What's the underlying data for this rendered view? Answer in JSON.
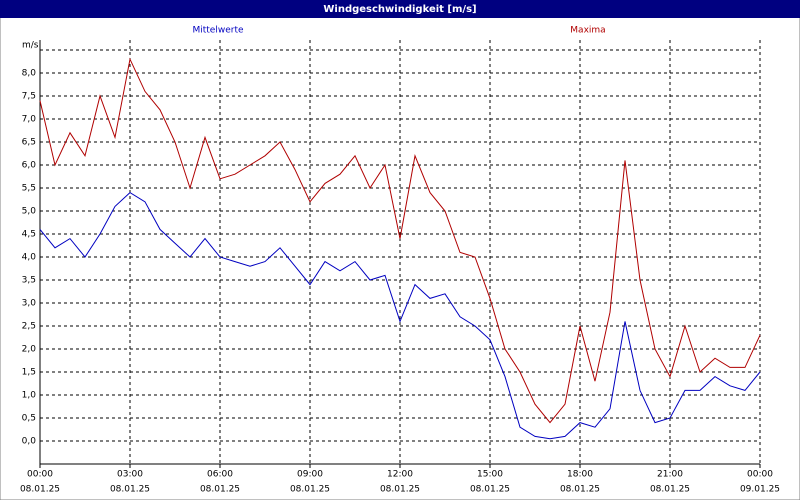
{
  "chart_data": {
    "type": "line",
    "title": "Windgeschwindigkeit [m/s]",
    "y_label": "m/s",
    "x": [
      0,
      0.5,
      1,
      1.5,
      2,
      2.5,
      3,
      3.5,
      4,
      4.5,
      5,
      5.5,
      6,
      6.5,
      7,
      7.5,
      8,
      8.5,
      9,
      9.5,
      10,
      10.5,
      11,
      11.5,
      12,
      12.5,
      13,
      13.5,
      14,
      14.5,
      15,
      15.5,
      16,
      16.5,
      17,
      17.5,
      18,
      18.5,
      19,
      19.5,
      20,
      20.5,
      21,
      21.5,
      22,
      22.5,
      23,
      23.5,
      24
    ],
    "series": [
      {
        "name": "Mittelwerte",
        "color": "#0000c0",
        "values": [
          4.6,
          4.2,
          4.4,
          4.0,
          4.5,
          5.1,
          5.4,
          5.2,
          4.6,
          4.3,
          4.0,
          4.4,
          4.0,
          3.9,
          3.8,
          3.9,
          4.2,
          3.8,
          3.4,
          3.9,
          3.7,
          3.9,
          3.5,
          3.6,
          2.6,
          3.4,
          3.1,
          3.2,
          2.7,
          2.5,
          2.2,
          1.4,
          0.3,
          0.1,
          0.05,
          0.1,
          0.4,
          0.3,
          0.7,
          2.6,
          1.1,
          0.4,
          0.5,
          1.1,
          1.1,
          1.4,
          1.2,
          1.1,
          1.5
        ]
      },
      {
        "name": "Maxima",
        "color": "#b00000",
        "values": [
          7.4,
          6.0,
          6.7,
          6.2,
          7.5,
          6.6,
          8.3,
          7.6,
          7.2,
          6.5,
          5.5,
          6.6,
          5.7,
          5.8,
          6.0,
          6.2,
          6.5,
          5.9,
          5.2,
          5.6,
          5.8,
          6.2,
          5.5,
          6.0,
          4.4,
          6.2,
          5.4,
          5.0,
          4.1,
          4.0,
          3.1,
          2.0,
          1.5,
          0.8,
          0.4,
          0.8,
          2.5,
          1.3,
          2.8,
          6.1,
          3.5,
          2.0,
          1.4,
          2.5,
          1.5,
          1.8,
          1.6,
          1.6,
          2.3
        ]
      }
    ],
    "xlim": [
      0,
      24
    ],
    "ylim": [
      -0.5,
      8.5
    ],
    "xticks": [
      {
        "value": 0,
        "label": [
          "00:00",
          "08.01.25"
        ]
      },
      {
        "value": 3,
        "label": [
          "03:00",
          "08.01.25"
        ]
      },
      {
        "value": 6,
        "label": [
          "06:00",
          "08.01.25"
        ]
      },
      {
        "value": 9,
        "label": [
          "09:00",
          "08.01.25"
        ]
      },
      {
        "value": 12,
        "label": [
          "12:00",
          "08.01.25"
        ]
      },
      {
        "value": 15,
        "label": [
          "15:00",
          "08.01.25"
        ]
      },
      {
        "value": 18,
        "label": [
          "18:00",
          "08.01.25"
        ]
      },
      {
        "value": 21,
        "label": [
          "21:00",
          "08.01.25"
        ]
      },
      {
        "value": 24,
        "label": [
          "00:00",
          "09.01.25"
        ]
      }
    ],
    "yticks": [
      {
        "value": 0,
        "label": "0,0"
      },
      {
        "value": 0.5,
        "label": "0,5"
      },
      {
        "value": 1,
        "label": "1,0"
      },
      {
        "value": 1.5,
        "label": "1,5"
      },
      {
        "value": 2,
        "label": "2,0"
      },
      {
        "value": 2.5,
        "label": "2,5"
      },
      {
        "value": 3,
        "label": "3,0"
      },
      {
        "value": 3.5,
        "label": "3,5"
      },
      {
        "value": 4,
        "label": "4,0"
      },
      {
        "value": 4.5,
        "label": "4,5"
      },
      {
        "value": 5,
        "label": "5,0"
      },
      {
        "value": 5.5,
        "label": "5,5"
      },
      {
        "value": 6,
        "label": "6,0"
      },
      {
        "value": 6.5,
        "label": "6,5"
      },
      {
        "value": 7,
        "label": "7,0"
      },
      {
        "value": 7.5,
        "label": "7,5"
      },
      {
        "value": 8,
        "label": "8,0"
      }
    ],
    "grid": true
  }
}
